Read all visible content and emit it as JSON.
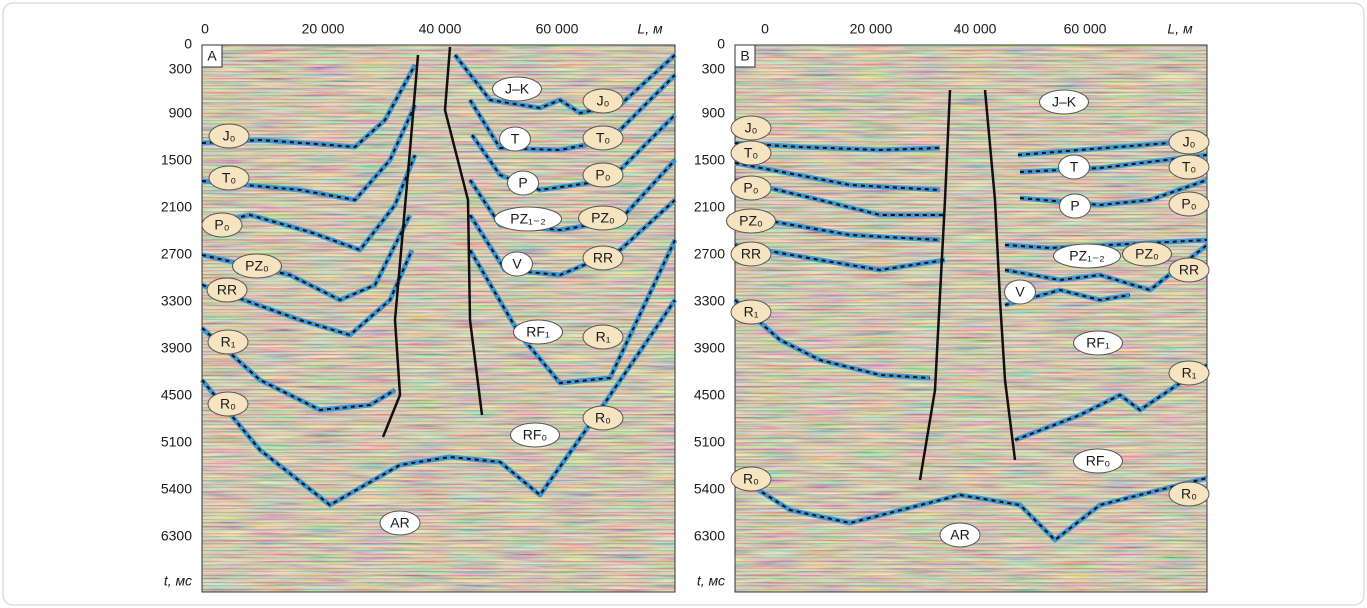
{
  "panels": [
    {
      "label": "A",
      "x_ticks": [
        "0",
        "20 000",
        "40 000",
        "60 000"
      ],
      "x_label": "L, м",
      "y_ticks": [
        0,
        300,
        900,
        1500,
        2100,
        2700,
        3300,
        3900,
        4500,
        5100,
        5400,
        6300
      ],
      "y_label": "t, мс",
      "layers": [
        "J–K",
        "J₀",
        "T",
        "T₀",
        "P",
        "P₀",
        "PZ₁₋₂",
        "PZ₀",
        "V",
        "RR",
        "RF₁",
        "R₁",
        "RF₀",
        "R₀",
        "AR",
        "J₀",
        "T₀",
        "P₀",
        "PZ₀",
        "RR",
        "R₁",
        "R₀"
      ]
    },
    {
      "label": "B",
      "x_ticks": [
        "0",
        "20 000",
        "40 000",
        "60 000"
      ],
      "x_label": "L, м",
      "y_ticks": [
        0,
        300,
        900,
        1500,
        2100,
        2700,
        3300,
        3900,
        4500,
        5100,
        5400,
        6300
      ],
      "y_label": "t, мс",
      "layers": [
        "J–K",
        "J₀",
        "T",
        "T₀",
        "P",
        "P₀",
        "PZ₁₋₂",
        "PZ₀",
        "RR",
        "V",
        "RF₁",
        "R₁",
        "RF₀",
        "R₀",
        "AR",
        "J₀",
        "T₀",
        "P₀",
        "PZ₀",
        "RR",
        "R₁",
        "R₀"
      ]
    }
  ]
}
